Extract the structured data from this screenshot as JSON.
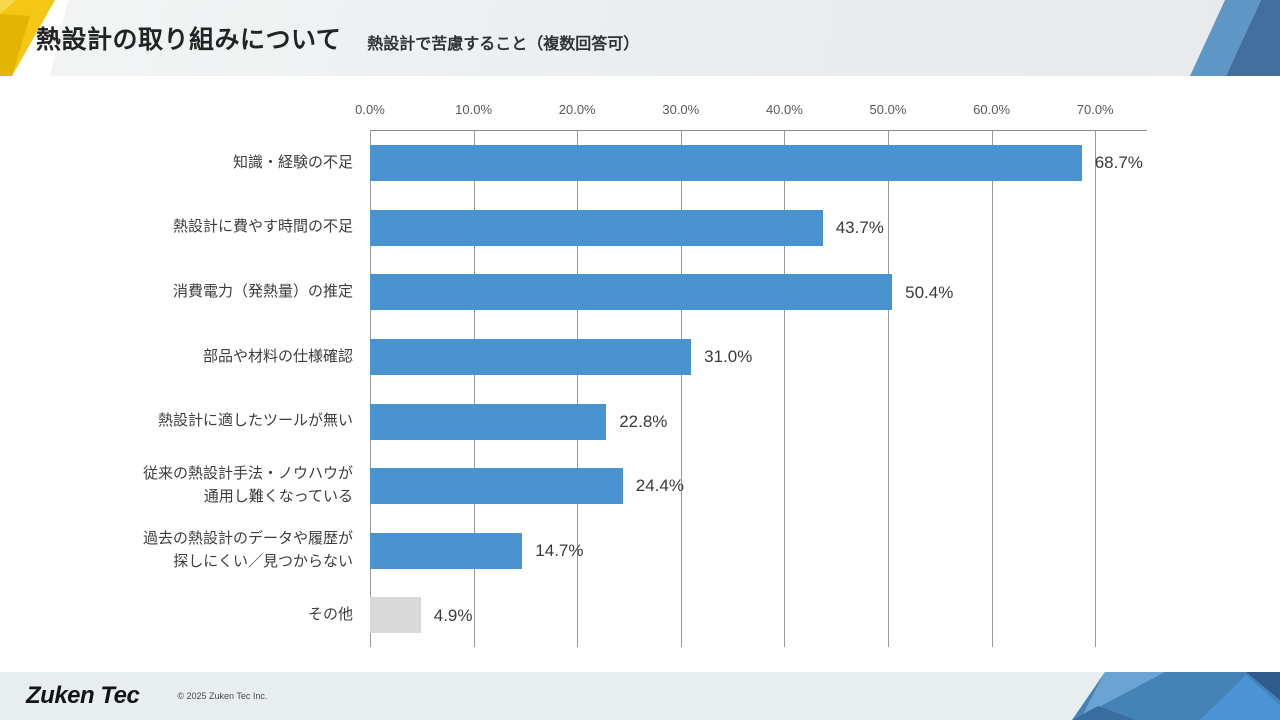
{
  "header": {
    "title": "熱設計の取り組みについて",
    "subtitle": "熱設計で苦慮すること（複数回答可）"
  },
  "footer": {
    "logo": "Zuken Tec",
    "copyright": "© 2025 Zuken Tec Inc."
  },
  "colors": {
    "bar_blue": "#4a93d1",
    "bar_gray": "#d9d9d9",
    "accent_yellow": "#f3c713",
    "accent_yellow_dark": "#e4b405",
    "accent_yellow_light": "#f8d64a",
    "header_blue_light": "#5e96c6",
    "header_blue_dark": "#426f9d",
    "footer_blue_base": "#4583b6",
    "footer_blue_light": "#6ba3d3",
    "footer_blue_bright": "#4b94d6",
    "footer_blue_dark": "#2e5c8d",
    "footer_blue_shadow": "#3a6da0"
  },
  "chart_data": {
    "type": "bar",
    "orientation": "horizontal",
    "title": "熱設計で苦慮すること（複数回答可）",
    "xlabel": "",
    "ylabel": "",
    "grid": true,
    "legend": "none",
    "axis_max": 75,
    "tick_step": 10,
    "x_ticks": [
      "0.0%",
      "10.0%",
      "20.0%",
      "30.0%",
      "40.0%",
      "50.0%",
      "60.0%",
      "70.0%"
    ],
    "categories": [
      [
        "知識・経験の不足"
      ],
      [
        "熱設計に費やす時間の不足"
      ],
      [
        "消費電力（発熱量）の推定"
      ],
      [
        "部品や材料の仕様確認"
      ],
      [
        "熱設計に適したツールが無い"
      ],
      [
        "従来の熱設計手法・ノウハウが",
        "通用し難くなっている"
      ],
      [
        "過去の熱設計のデータや履歴が",
        "探しにくい／見つからない"
      ],
      [
        "その他"
      ]
    ],
    "values": [
      68.7,
      43.7,
      50.4,
      31.0,
      22.8,
      24.4,
      14.7,
      4.9
    ],
    "value_labels": [
      "68.7%",
      "43.7%",
      "50.4%",
      "31.0%",
      "22.8%",
      "24.4%",
      "14.7%",
      "4.9%"
    ],
    "bar_colors": [
      "#4a93d1",
      "#4a93d1",
      "#4a93d1",
      "#4a93d1",
      "#4a93d1",
      "#4a93d1",
      "#4a93d1",
      "#d9d9d9"
    ]
  }
}
